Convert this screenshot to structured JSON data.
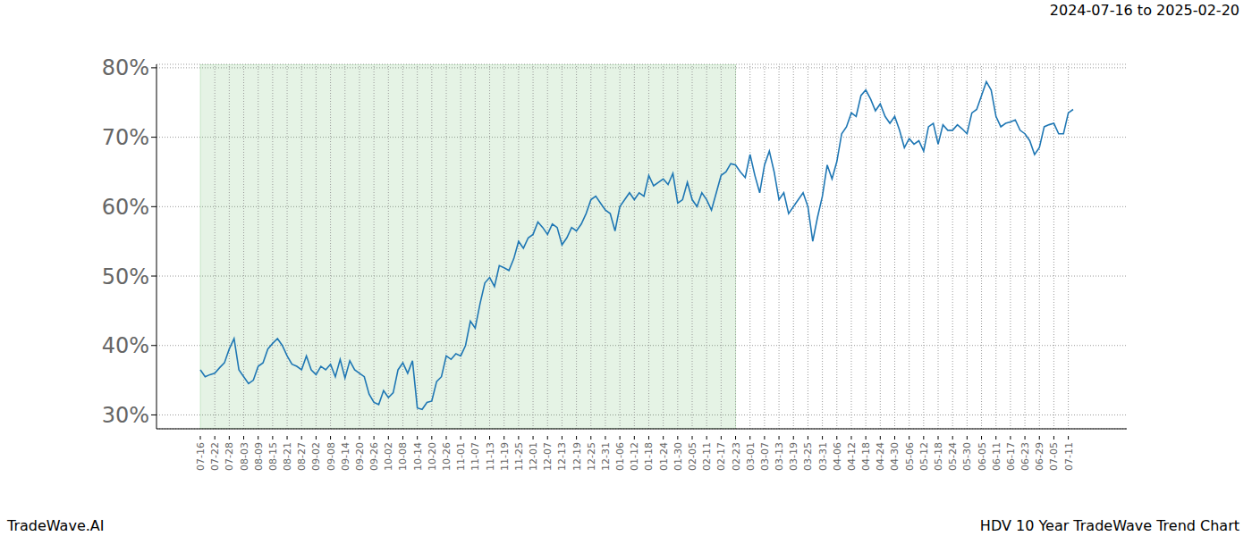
{
  "chart_data": {
    "type": "line",
    "title": "2024-07-16 to 2025-02-20",
    "footer_left": "TradeWave.AI",
    "footer_right": "HDV 10 Year TradeWave Trend Chart",
    "color": "#1f77b4",
    "grid": true,
    "highlight": {
      "from": "07-16",
      "to": "02-23"
    },
    "ylim": [
      28,
      80.5
    ],
    "yticks": [
      {
        "value": 30,
        "label": "30%"
      },
      {
        "value": 40,
        "label": "40%"
      },
      {
        "value": 50,
        "label": "50%"
      },
      {
        "value": 60,
        "label": "60%"
      },
      {
        "value": 70,
        "label": "70%"
      },
      {
        "value": 80,
        "label": "80%"
      }
    ],
    "categories": [
      "07-16",
      null,
      null,
      "07-22",
      null,
      null,
      "07-28",
      null,
      null,
      "08-03",
      null,
      null,
      "08-09",
      null,
      null,
      "08-15",
      null,
      null,
      "08-21",
      null,
      null,
      "08-27",
      null,
      null,
      "09-02",
      null,
      null,
      "09-08",
      null,
      null,
      "09-14",
      null,
      null,
      "09-20",
      null,
      null,
      "09-26",
      null,
      null,
      "10-02",
      null,
      null,
      "10-08",
      null,
      null,
      "10-14",
      null,
      null,
      "10-20",
      null,
      null,
      "10-26",
      null,
      null,
      "11-01",
      null,
      null,
      "11-07",
      null,
      null,
      "11-13",
      null,
      null,
      "11-19",
      null,
      null,
      "11-25",
      null,
      null,
      "12-01",
      null,
      null,
      "12-07",
      null,
      null,
      "12-13",
      null,
      null,
      "12-19",
      null,
      null,
      "12-25",
      null,
      null,
      "12-31",
      null,
      null,
      "01-06",
      null,
      null,
      "01-12",
      null,
      null,
      "01-18",
      null,
      null,
      "01-24",
      null,
      null,
      "01-30",
      null,
      null,
      "02-05",
      null,
      null,
      "02-11",
      null,
      null,
      "02-17",
      null,
      null,
      "02-23",
      null,
      null,
      "03-01",
      null,
      null,
      "03-07",
      null,
      null,
      "03-13",
      null,
      null,
      "03-19",
      null,
      null,
      "03-25",
      null,
      null,
      "03-31",
      null,
      null,
      "04-06",
      null,
      null,
      "04-12",
      null,
      null,
      "04-18",
      null,
      null,
      "04-24",
      null,
      null,
      "04-30",
      null,
      null,
      "05-06",
      null,
      null,
      "05-12",
      null,
      null,
      "05-18",
      null,
      null,
      "05-24",
      null,
      null,
      "05-30",
      null,
      null,
      "06-05",
      null,
      null,
      "06-11",
      null,
      null,
      "06-17",
      null,
      null,
      "06-23",
      null,
      null,
      "06-29",
      null,
      null,
      "07-05",
      null,
      null,
      "07-11",
      null
    ],
    "values": [
      36.5,
      35.5,
      35.8,
      36.0,
      36.8,
      37.5,
      39.5,
      41.0,
      36.5,
      35.5,
      34.5,
      35.0,
      37.0,
      37.5,
      39.5,
      40.3,
      41.0,
      40.0,
      38.5,
      37.3,
      37.0,
      36.5,
      38.5,
      36.5,
      35.8,
      37.0,
      36.5,
      37.3,
      35.5,
      38.0,
      35.3,
      37.8,
      36.5,
      36.0,
      35.5,
      33.0,
      31.8,
      31.5,
      33.5,
      32.5,
      33.2,
      36.5,
      37.5,
      36.0,
      37.8,
      31.0,
      30.8,
      31.8,
      32.0,
      34.8,
      35.5,
      38.5,
      38.0,
      38.8,
      38.5,
      40.0,
      43.5,
      42.5,
      46.0,
      49.0,
      49.8,
      48.5,
      51.5,
      51.2,
      50.8,
      52.5,
      55.0,
      54.0,
      55.5,
      56.0,
      57.8,
      57.0,
      56.0,
      57.5,
      57.0,
      54.5,
      55.5,
      57.0,
      56.5,
      57.5,
      59.0,
      61.0,
      61.5,
      60.5,
      59.5,
      59.0,
      56.5,
      60.0,
      61.0,
      62.0,
      61.0,
      62.0,
      61.5,
      64.5,
      63.0,
      63.5,
      64.0,
      63.2,
      64.8,
      60.5,
      61.0,
      63.5,
      61.0,
      60.0,
      62.0,
      61.0,
      59.5,
      62.0,
      64.5,
      65.0,
      66.2,
      66.0,
      65.0,
      64.2,
      67.5,
      64.5,
      62.0,
      66.0,
      68.0,
      65.0,
      61.0,
      62.0,
      59.0,
      60.0,
      61.0,
      62.0,
      60.0,
      55.0,
      58.5,
      61.5,
      66.0,
      64.0,
      66.5,
      70.5,
      71.5,
      73.5,
      73.0,
      76.0,
      76.8,
      75.5,
      73.8,
      74.8,
      73.0,
      72.0,
      73.0,
      71.0,
      68.5,
      69.8,
      69.0,
      69.5,
      68.0,
      71.5,
      72.0,
      69.0,
      71.8,
      71.0,
      71.0,
      71.8,
      71.2,
      70.5,
      73.5,
      74.0,
      76.0,
      78.0,
      76.8,
      73.0,
      71.5,
      72.0,
      72.2,
      72.5,
      71.0,
      70.5,
      69.5,
      67.5,
      68.5,
      71.5,
      71.8,
      72.0,
      70.5,
      70.5,
      73.5,
      74.0
    ]
  }
}
